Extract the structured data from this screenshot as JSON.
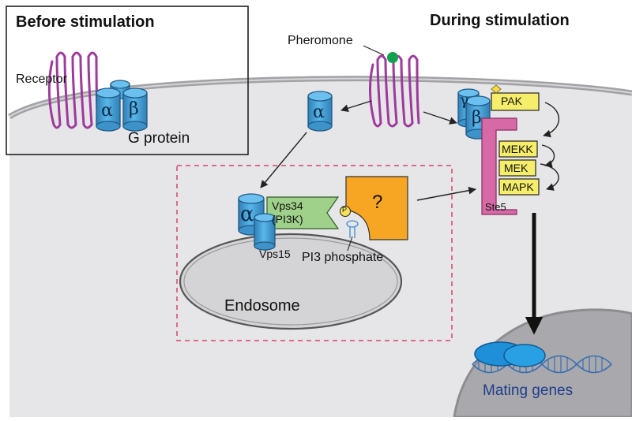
{
  "titles": {
    "before": "Before stimulation",
    "during": "During stimulation"
  },
  "labels": {
    "pheromone": "Pheromone",
    "receptor": "Receptor",
    "g_protein": "G protein",
    "alpha": "α",
    "beta": "β",
    "gamma": "γ",
    "pak": "PAK",
    "mekk": "MEKK",
    "mek": "MEK",
    "mapk": "MAPK",
    "ste5": "Ste5",
    "vps34": "Vps34",
    "pi3k": "(PI3K)",
    "vps15": "Vps15",
    "question": "?",
    "phospho": "P",
    "pi3_phosphate": "PI3 phosphate",
    "endosome": "Endosome",
    "mating_genes": "Mating genes"
  },
  "colors": {
    "cell": "#e6e6e8",
    "membrane": "#b4b4b8",
    "nucleus": "#a9a9ad",
    "endosome": "#d4d4d6",
    "receptor": "#9d3a9b",
    "g_protein": "#4aa6dd",
    "g_protein_dark": "#2f7fb5",
    "pheromone": "#11a04e",
    "kinase_box": "#f6ee6a",
    "ste5": "#d76aa6",
    "vps34": "#9fd18a",
    "question": "#f6a623",
    "dash_box": "#d9406a",
    "dna": "#3a6fb0",
    "mating_text": "#1f3d8a"
  }
}
